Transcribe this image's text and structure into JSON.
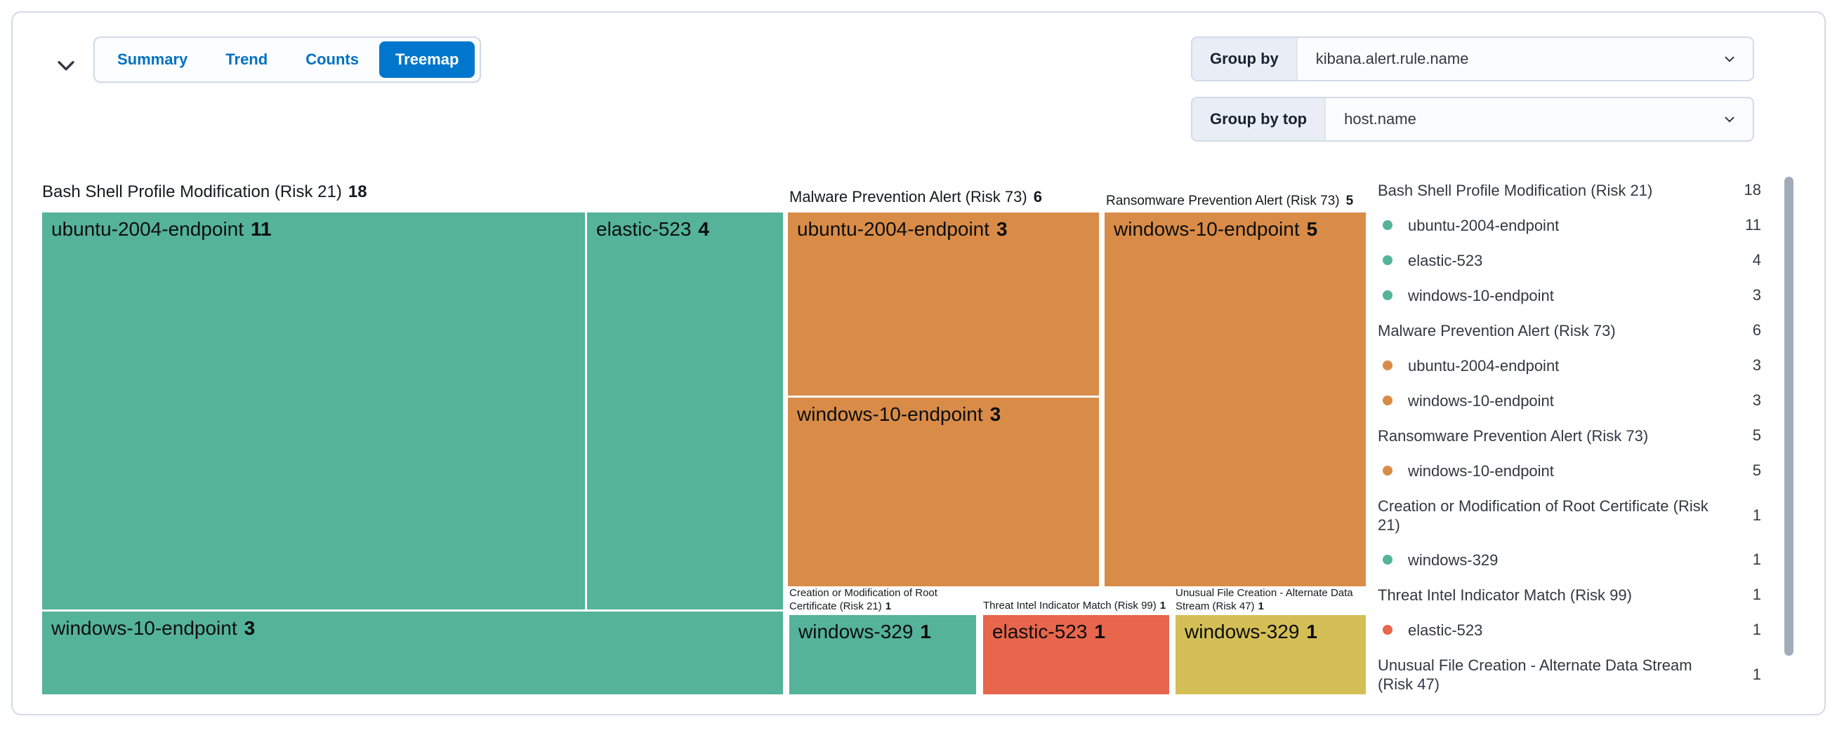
{
  "tabs": {
    "items": [
      "Summary",
      "Trend",
      "Counts",
      "Treemap"
    ],
    "selected": "Treemap"
  },
  "controls": {
    "group_by": {
      "label": "Group by",
      "value": "kibana.alert.rule.name"
    },
    "group_by_top": {
      "label": "Group by top",
      "value": "host.name"
    }
  },
  "colors": {
    "green": "#54B399",
    "orange": "#D98C48",
    "red": "#E7664C",
    "yellow": "#D4BF57",
    "tab_selected": "#0077CC"
  },
  "chart_data": {
    "type": "treemap",
    "title": "Alerts treemap grouped by kibana.alert.rule.name, split by host.name",
    "groups": [
      {
        "name": "Bash Shell Profile Modification (Risk 21)",
        "value": 18,
        "color": "#54B399",
        "children": [
          {
            "name": "ubuntu-2004-endpoint",
            "value": 11
          },
          {
            "name": "elastic-523",
            "value": 4
          },
          {
            "name": "windows-10-endpoint",
            "value": 3
          }
        ]
      },
      {
        "name": "Malware Prevention Alert (Risk 73)",
        "value": 6,
        "color": "#D98C48",
        "children": [
          {
            "name": "ubuntu-2004-endpoint",
            "value": 3
          },
          {
            "name": "windows-10-endpoint",
            "value": 3
          }
        ]
      },
      {
        "name": "Ransomware Prevention Alert (Risk 73)",
        "value": 5,
        "color": "#D98C48",
        "children": [
          {
            "name": "windows-10-endpoint",
            "value": 5
          }
        ]
      },
      {
        "name": "Creation or Modification of Root Certificate (Risk 21)",
        "value": 1,
        "color": "#54B399",
        "children": [
          {
            "name": "windows-329",
            "value": 1
          }
        ]
      },
      {
        "name": "Threat Intel Indicator Match (Risk 99)",
        "value": 1,
        "color": "#E7664C",
        "children": [
          {
            "name": "elastic-523",
            "value": 1
          }
        ]
      },
      {
        "name": "Unusual File Creation - Alternate Data Stream (Risk 47)",
        "value": 1,
        "color": "#D4BF57",
        "children": [
          {
            "name": "windows-329",
            "value": 1
          }
        ]
      }
    ]
  },
  "legend": {
    "rows": [
      {
        "kind": "group",
        "label": "Bash Shell Profile Modification (Risk 21)",
        "count": "18"
      },
      {
        "kind": "item",
        "dot": "#54B399",
        "label": "ubuntu-2004-endpoint",
        "count": "11"
      },
      {
        "kind": "item",
        "dot": "#54B399",
        "label": "elastic-523",
        "count": "4"
      },
      {
        "kind": "item",
        "dot": "#54B399",
        "label": "windows-10-endpoint",
        "count": "3"
      },
      {
        "kind": "group",
        "label": "Malware Prevention Alert (Risk 73)",
        "count": "6"
      },
      {
        "kind": "item",
        "dot": "#D98C48",
        "label": "ubuntu-2004-endpoint",
        "count": "3"
      },
      {
        "kind": "item",
        "dot": "#D98C48",
        "label": "windows-10-endpoint",
        "count": "3"
      },
      {
        "kind": "group",
        "label": "Ransomware Prevention Alert (Risk 73)",
        "count": "5"
      },
      {
        "kind": "item",
        "dot": "#D98C48",
        "label": "windows-10-endpoint",
        "count": "5"
      },
      {
        "kind": "group",
        "label": "Creation or Modification of Root Certificate (Risk 21)",
        "count": "1",
        "twoline": true
      },
      {
        "kind": "item",
        "dot": "#54B399",
        "label": "windows-329",
        "count": "1"
      },
      {
        "kind": "group",
        "label": "Threat Intel Indicator Match (Risk 99)",
        "count": "1"
      },
      {
        "kind": "item",
        "dot": "#E7664C",
        "label": "elastic-523",
        "count": "1"
      },
      {
        "kind": "group",
        "label": "Unusual File Creation - Alternate Data Stream (Risk 47)",
        "count": "1",
        "twoline": true
      }
    ]
  }
}
